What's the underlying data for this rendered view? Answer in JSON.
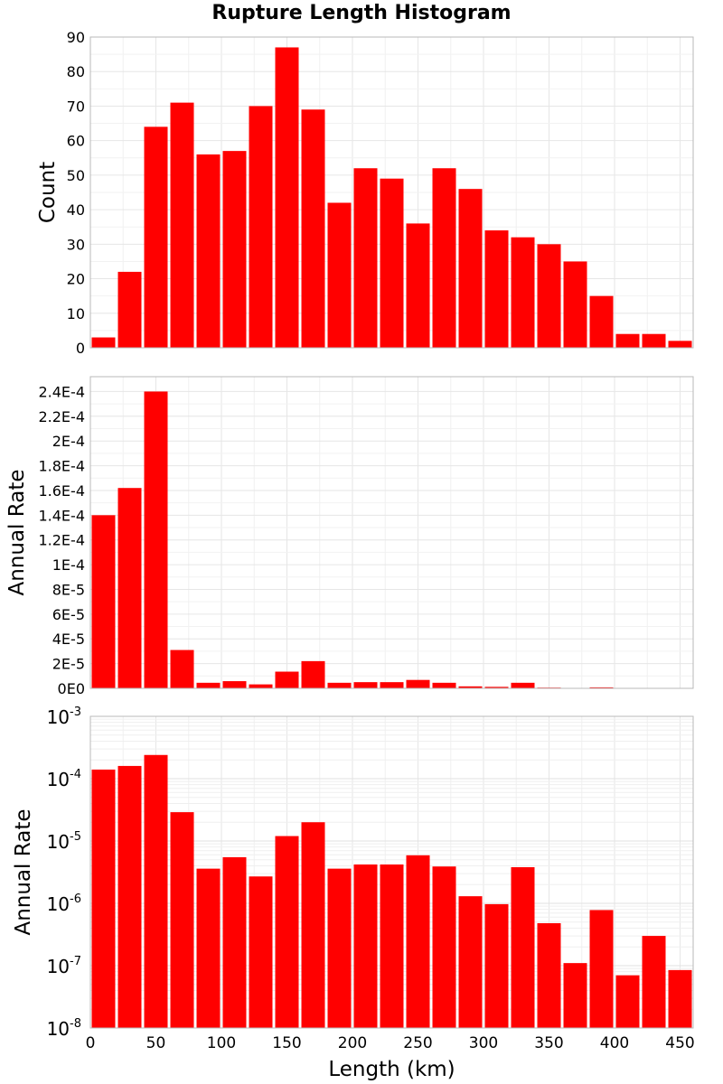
{
  "chart_data": {
    "title": "Rupture Length Histogram",
    "xlabel": "Length (km)",
    "xlim": [
      0,
      460
    ],
    "x_ticks": [
      0,
      50,
      100,
      150,
      200,
      250,
      300,
      350,
      400,
      450
    ],
    "bin_width": 20,
    "bar_color": "#ff0000",
    "grid": true,
    "panels": [
      {
        "type": "bar",
        "ylabel": "Count",
        "scale": "linear",
        "ylim": [
          0,
          90
        ],
        "y_ticks": [
          0,
          10,
          20,
          30,
          40,
          50,
          60,
          70,
          80,
          90
        ],
        "y_tick_labels": [
          "0",
          "10",
          "20",
          "30",
          "40",
          "50",
          "60",
          "70",
          "80",
          "90"
        ],
        "bin_centers": [
          10,
          30,
          50,
          70,
          90,
          110,
          130,
          150,
          170,
          190,
          210,
          230,
          250,
          270,
          290,
          310,
          330,
          350,
          370,
          390,
          410,
          430,
          450
        ],
        "values": [
          3,
          22,
          64,
          71,
          56,
          57,
          70,
          87,
          69,
          42,
          52,
          49,
          36,
          52,
          46,
          34,
          32,
          30,
          25,
          15,
          4,
          4,
          2
        ]
      },
      {
        "type": "bar",
        "ylabel": "Annual Rate",
        "scale": "linear",
        "ylim": [
          0,
          0.000252
        ],
        "y_ticks": [
          0,
          2e-05,
          4e-05,
          6e-05,
          8e-05,
          0.0001,
          0.00012,
          0.00014,
          0.00016,
          0.00018,
          0.0002,
          0.00022,
          0.00024
        ],
        "y_tick_labels": [
          "0E0",
          "2E-5",
          "4E-5",
          "6E-5",
          "8E-5",
          "1E-4",
          "1.2E-4",
          "1.4E-4",
          "1.6E-4",
          "1.8E-4",
          "2E-4",
          "2.2E-4",
          "2.4E-4"
        ],
        "bin_centers": [
          10,
          30,
          50,
          70,
          90,
          110,
          130,
          150,
          170,
          190,
          210,
          230,
          250,
          270,
          290,
          310,
          330,
          350,
          370,
          390,
          410,
          430,
          450
        ],
        "values": [
          0.00014,
          0.000162,
          0.00024,
          3.1e-05,
          4.5e-06,
          5.8e-06,
          3.2e-06,
          1.35e-05,
          2.2e-05,
          4.5e-06,
          5e-06,
          5e-06,
          6.8e-06,
          4.5e-06,
          1.6e-06,
          1.2e-06,
          4.5e-06,
          6e-07,
          2e-07,
          8e-07,
          1e-07,
          3e-07,
          1e-07
        ]
      },
      {
        "type": "bar",
        "ylabel": "Annual Rate",
        "scale": "log",
        "ylim": [
          1e-08,
          0.001
        ],
        "y_ticks": [
          1e-08,
          1e-07,
          1e-06,
          1e-05,
          0.0001,
          0.001
        ],
        "y_tick_exponents": [
          "-8",
          "-7",
          "-6",
          "-5",
          "-4",
          "-3"
        ],
        "bin_centers": [
          10,
          30,
          50,
          70,
          90,
          110,
          130,
          150,
          170,
          190,
          210,
          230,
          250,
          270,
          290,
          310,
          330,
          350,
          370,
          390,
          410,
          430,
          450
        ],
        "values": [
          0.00014,
          0.00016,
          0.00024,
          2.9e-05,
          3.6e-06,
          5.5e-06,
          2.7e-06,
          1.2e-05,
          2e-05,
          3.6e-06,
          4.2e-06,
          4.2e-06,
          5.9e-06,
          3.9e-06,
          1.3e-06,
          9.7e-07,
          3.8e-06,
          4.8e-07,
          1.1e-07,
          7.8e-07,
          7e-08,
          3e-07,
          8.5e-08
        ]
      }
    ]
  }
}
